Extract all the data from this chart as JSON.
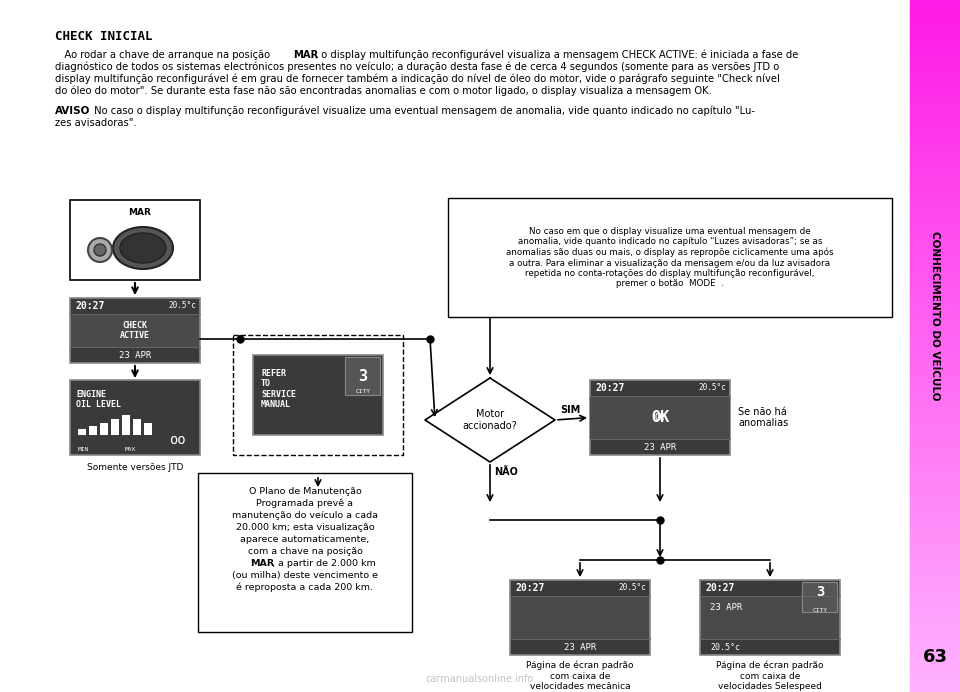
{
  "bg_color": "#ffffff",
  "sidebar_color_top": "#ff44ff",
  "sidebar_color_bot": "#ffaaff",
  "sidebar_text": "CONHECIMENTO DO VEÍCULO",
  "page_number": "63",
  "title": "CHECK INICIAL",
  "body_lines": [
    [
      "   Ao rodar a chave de arranque na posição ",
      "MAR",
      ", o display multifunção reconfigurável visualiza a mensagem CHECK ACTIVE: é iniciada a fase de"
    ],
    [
      "diagnóstico de todos os sistemas electrónicos presentes no veículo; a duração desta fase é de cerca 4 segundos (somente para as versões JTD o"
    ],
    [
      "display multifunção reconfigurável é em grau de fornecer também a indicação do nível de óleo do motor, vide o parágrafo seguinte \"Check nível"
    ],
    [
      "do óleo do motor\". Se durante esta fase não são encontradas anomalias e com o motor ligado, o display visualiza a mensagem OK."
    ]
  ],
  "aviso_title": "AVISO",
  "aviso_body": " No caso o display multifunção reconfigurável visualize uma eventual mensagem de anomalia, vide quanto indicado no capítulo \"Lu-",
  "aviso_body2": "zes avisadoras\".",
  "note_text": "No caso em que o display visualize uma eventual mensagem de\nanomalia, vide quanto indicado no capítulo “Luzes avisadoras”; se as\nanomalias são duas ou mais, o display as repropõe ciclicamente uma após\na outra. Para eliminar a visualização da mensagem e/ou da luz avisadora\nrepetida no conta-rotações do display multifunção reconfigurável,\npremer o botão  MODE  .",
  "diamond_text": "Motor\naccionado?",
  "sim_label": "SIM",
  "nao_label": "NÃO",
  "se_nao_text": "Se não há\nanomalias",
  "somente_text": "Somente versões JTD",
  "plano_text": "O Plano de Manutenção\nProgramada prevê a\nmanutenção do veículo a cada\n20.000 km; esta visualização\naparece automaticamente,\ncom a chave na posição\nMAR, a partir de 2.000 km\n(ou milha) deste vencimento e\né reproposta a cada 200 km.",
  "pagina1_text": "Página de écran padrão\ncom caixa de\nvelocidades mecânica",
  "pagina2_text": "Página de écran padrão\ncom caixa de\nvelocidades Selespeed",
  "display_dark": "#3a3a3a",
  "display_mid": "#4a4a4a",
  "display_border": "#888888",
  "watermark": "carmanualsonline.info"
}
